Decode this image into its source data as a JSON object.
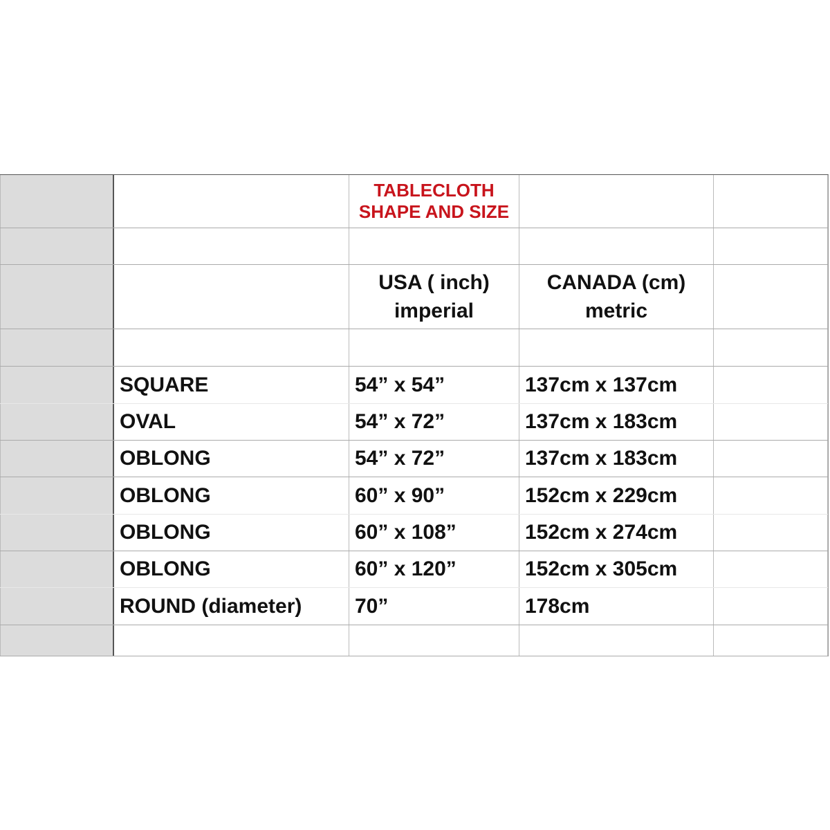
{
  "title": {
    "line1": "TABLECLOTH",
    "line2": "SHAPE AND SIZE",
    "color": "#c8141c"
  },
  "columns": {
    "usa": {
      "line1": "USA ( inch)",
      "line2": "imperial"
    },
    "canada": {
      "line1": "CANADA (cm)",
      "line2": "metric"
    }
  },
  "rows": [
    {
      "shape": "SQUARE",
      "usa": "54” x 54”",
      "canada": "137cm x 137cm"
    },
    {
      "shape": "OVAL",
      "usa": "54” x 72”",
      "canada": "137cm x 183cm"
    },
    {
      "shape": "OBLONG",
      "usa": "54” x 72”",
      "canada": "137cm x 183cm"
    },
    {
      "shape": "OBLONG",
      "usa": "60” x 90”",
      "canada": "152cm x 229cm"
    },
    {
      "shape": "OBLONG",
      "usa": "60” x 108”",
      "canada": "152cm x 274cm"
    },
    {
      "shape": "OBLONG",
      "usa": "60” x 120”",
      "canada": "152cm x 305cm"
    },
    {
      "shape": "ROUND (diameter)",
      "usa": "70”",
      "canada": "178cm"
    }
  ]
}
